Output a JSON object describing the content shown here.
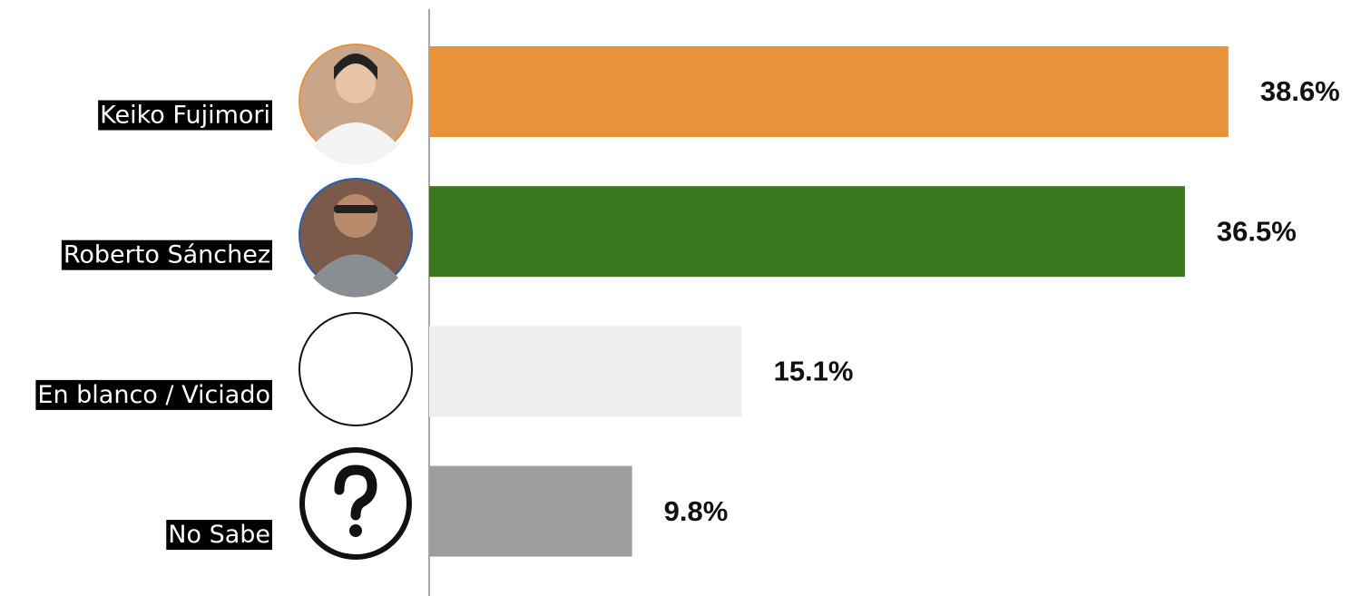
{
  "chart_data": {
    "type": "hbar",
    "categories": [
      "Keiko Fujimori",
      "Roberto Sánchez",
      "En blanco / Viciado",
      "No Sabe"
    ],
    "values": [
      38.6,
      36.5,
      15.1,
      9.8
    ],
    "value_labels": [
      "38.6%",
      "36.5%",
      "15.1%",
      "9.8%"
    ],
    "colors": [
      "#e8923a",
      "#3a7820",
      "#efefef",
      "#9e9e9e"
    ]
  }
}
